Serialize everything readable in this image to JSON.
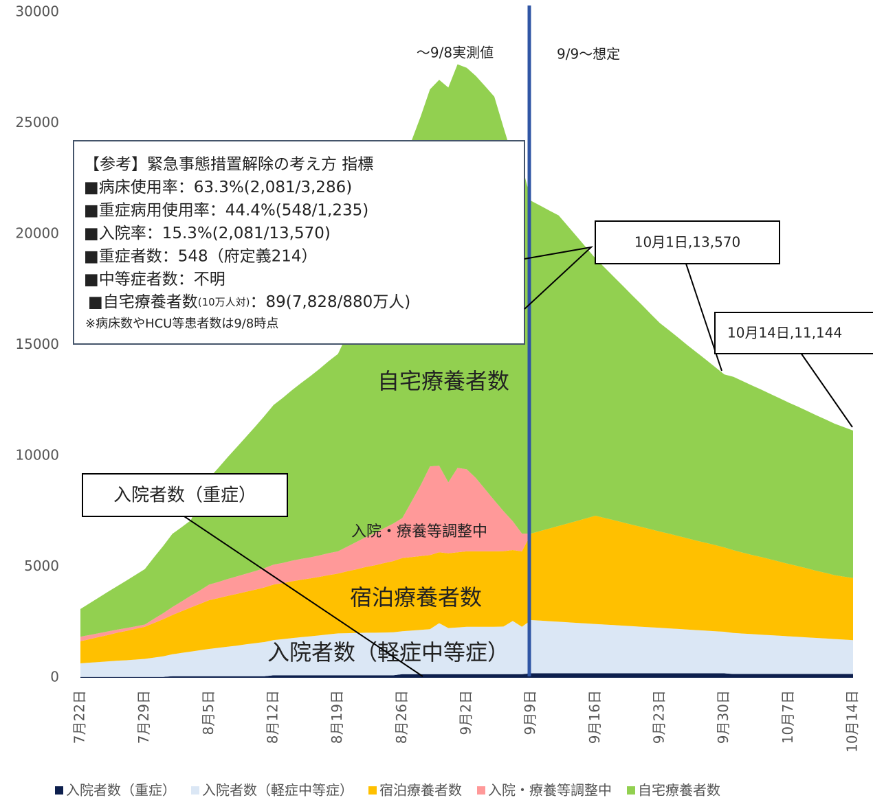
{
  "chart_data": {
    "type": "stacked_area",
    "categories": [
      "7月22日",
      null,
      null,
      null,
      null,
      null,
      null,
      "7月29日",
      null,
      null,
      null,
      null,
      null,
      null,
      "8月5日",
      null,
      null,
      null,
      null,
      null,
      null,
      "8月12日",
      null,
      null,
      null,
      null,
      null,
      null,
      "8月19日",
      null,
      null,
      null,
      null,
      null,
      null,
      "8月26日",
      null,
      null,
      null,
      null,
      null,
      null,
      "9月2日",
      null,
      null,
      null,
      null,
      null,
      null,
      "9月9日",
      null,
      null,
      null,
      null,
      null,
      null,
      "9月16日",
      null,
      null,
      null,
      null,
      null,
      null,
      "9月23日",
      null,
      null,
      null,
      null,
      null,
      null,
      "9月30日",
      null,
      null,
      null,
      null,
      null,
      null,
      "10月7日",
      null,
      null,
      null,
      null,
      null,
      null,
      "10月14日"
    ],
    "series": [
      {
        "name": "入院者数（重症）",
        "color": "#0d1f4d",
        "values": [
          40,
          40,
          40,
          40,
          40,
          40,
          40,
          40,
          40,
          40,
          70,
          70,
          70,
          70,
          70,
          70,
          70,
          70,
          70,
          70,
          70,
          110,
          110,
          110,
          110,
          110,
          110,
          110,
          110,
          110,
          110,
          110,
          110,
          110,
          110,
          160,
          160,
          160,
          160,
          160,
          160,
          160,
          160,
          160,
          160,
          160,
          160,
          160,
          160,
          200,
          200,
          200,
          200,
          200,
          200,
          200,
          200,
          200,
          200,
          200,
          200,
          200,
          200,
          200,
          200,
          200,
          200,
          200,
          200,
          200,
          200,
          170,
          170,
          170,
          170,
          170,
          170,
          170,
          170,
          170,
          170,
          170,
          170,
          170,
          170
        ]
      },
      {
        "name": "入院者数（軽症中等症）",
        "color": "#dbe7f5",
        "values": [
          610,
          640,
          670,
          700,
          730,
          750,
          780,
          810,
          870,
          930,
          990,
          1050,
          1110,
          1170,
          1230,
          1280,
          1330,
          1380,
          1440,
          1490,
          1540,
          1590,
          1630,
          1680,
          1720,
          1760,
          1800,
          1850,
          1890,
          1900,
          1910,
          1920,
          1920,
          1930,
          1940,
          1940,
          1970,
          2000,
          2030,
          2300,
          2080,
          2110,
          2140,
          2140,
          2140,
          2140,
          2150,
          2400,
          2140,
          2400,
          2375,
          2350,
          2325,
          2300,
          2275,
          2250,
          2225,
          2200,
          2175,
          2150,
          2125,
          2100,
          2075,
          2050,
          2025,
          2000,
          1975,
          1950,
          1925,
          1900,
          1875,
          1850,
          1825,
          1800,
          1775,
          1750,
          1725,
          1700,
          1675,
          1650,
          1625,
          1600,
          1575,
          1550,
          1525
        ]
      },
      {
        "name": "宿泊療養者数",
        "color": "#ffc000",
        "values": [
          1000,
          1060,
          1130,
          1190,
          1260,
          1320,
          1390,
          1450,
          1560,
          1670,
          1770,
          1880,
          1990,
          2090,
          2200,
          2240,
          2290,
          2330,
          2370,
          2410,
          2460,
          2500,
          2530,
          2560,
          2590,
          2610,
          2640,
          2670,
          2700,
          2790,
          2870,
          2960,
          3040,
          3130,
          3210,
          3300,
          3310,
          3330,
          3340,
          3200,
          3370,
          3390,
          3400,
          3400,
          3400,
          3400,
          3400,
          3200,
          3400,
          3900,
          4040,
          4180,
          4320,
          4460,
          4600,
          4740,
          4880,
          4800,
          4730,
          4650,
          4570,
          4500,
          4420,
          4340,
          4270,
          4190,
          4110,
          4030,
          3960,
          3880,
          3800,
          3730,
          3650,
          3570,
          3500,
          3420,
          3340,
          3260,
          3190,
          3110,
          3030,
          2960,
          2880,
          2840,
          2800
        ]
      },
      {
        "name": "入院・療養等調整中",
        "color": "#ff9999",
        "values": [
          200,
          190,
          170,
          160,
          140,
          130,
          110,
          100,
          190,
          270,
          360,
          440,
          530,
          610,
          700,
          730,
          760,
          790,
          810,
          840,
          870,
          900,
          910,
          930,
          940,
          950,
          970,
          990,
          1000,
          1110,
          1230,
          1340,
          1460,
          1570,
          1690,
          1800,
          2500,
          3200,
          4000,
          3900,
          3200,
          3800,
          3700,
          3300,
          2800,
          2300,
          1800,
          1300,
          800,
          0,
          0,
          0,
          0,
          0,
          0,
          0,
          0,
          0,
          0,
          0,
          0,
          0,
          0,
          0,
          0,
          0,
          0,
          0,
          0,
          0,
          0,
          0,
          0,
          0,
          0,
          0,
          0,
          0,
          0,
          0,
          0,
          0,
          0,
          0,
          0
        ]
      },
      {
        "name": "自宅療養者数",
        "color": "#92d050",
        "values": [
          1250,
          1430,
          1610,
          1790,
          1960,
          2140,
          2320,
          2500,
          2770,
          3030,
          3300,
          3350,
          3400,
          4100,
          4800,
          5140,
          5490,
          5830,
          6170,
          6510,
          6860,
          7200,
          7440,
          7690,
          7930,
          8170,
          8410,
          8660,
          8900,
          9570,
          10230,
          10900,
          12150,
          13400,
          14650,
          15900,
          16270,
          16630,
          17000,
          17400,
          17800,
          18200,
          18100,
          18130,
          18170,
          18200,
          17300,
          16400,
          16600,
          15000,
          14670,
          14330,
          14000,
          13400,
          12800,
          12200,
          11600,
          11290,
          10970,
          10660,
          10340,
          10030,
          9710,
          9400,
          9170,
          8940,
          8710,
          8490,
          8260,
          8030,
          7800,
          7820,
          7730,
          7640,
          7550,
          7460,
          7370,
          7280,
          7190,
          7100,
          7010,
          6920,
          6830,
          6740,
          6649
        ]
      }
    ],
    "ylim": [
      0,
      30000
    ],
    "yticks": [
      0,
      5000,
      10000,
      15000,
      20000,
      25000,
      30000
    ],
    "grid": false,
    "legend": "bottom",
    "divider_color": "#2f55a4",
    "period_labels": [
      "〜9/8実測値",
      "9/9〜想定"
    ],
    "area_labels": [
      "自宅療養者数",
      "入院・療養等調整中",
      "宿泊療養者数",
      "入院者数（軽症中等症）"
    ],
    "callouts": [
      "10月1日,13,570",
      "10月14日,11,144",
      "入院者数（重症）"
    ],
    "info_box": {
      "lines": [
        "【参考】緊急事態措置解除の考え方 指標",
        "■病床使用率：63.3%(2,081/3,286)",
        "■重症病用使用率：44.4%(548/1,235)",
        "■入院率：15.3%(2,081/13,570)",
        "■重症者数：548（府定義214）",
        "■中等症者数：不明"
      ],
      "last_line": [
        "■自宅療養者数",
        "(10万人対)",
        "：89(7,828/880万人)"
      ],
      "note": "※病床数やHCU等患者数は9/8時点"
    }
  }
}
